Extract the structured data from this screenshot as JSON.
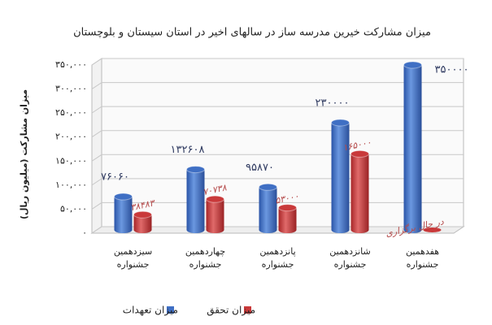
{
  "chart_data": {
    "type": "bar",
    "title": "میزان مشارکت خیرین مدرسه ساز در سالهای اخیر در استان سیستان و بلوچستان",
    "y_label": "میزان مشارکت (میلیون ریال)",
    "categories": [
      "سیزدهمین جشنواره",
      "چهاردهمین جشنواره",
      "پانزدهمین جشنواره",
      "شانزدهمین جشنواره",
      "هفدهمین جشنواره"
    ],
    "series": [
      {
        "name": "میزان تعهدات",
        "color": "#3f6fc4",
        "values": [
          76060,
          132608,
          95870,
          230000,
          350000
        ],
        "value_labels": [
          "۷۶۰۶۰",
          "۱۳۲۶۰۸",
          "۹۵۸۷۰",
          "۲۳۰۰۰۰",
          "۳۵۰۰۰۰"
        ]
      },
      {
        "name": "میزان تحقق",
        "color": "#c9393a",
        "values": [
          38483,
          70738,
          53000,
          165000,
          null
        ],
        "value_labels": [
          "۳۸۴۸۳",
          "۷۰۷۳۸",
          "۵۳۰۰۰",
          "۱۶۵۰۰۰",
          "در حال برگزاری"
        ]
      }
    ],
    "ylim": [
      0,
      350000
    ],
    "yticks": [
      {
        "value": 0,
        "label": "۰"
      },
      {
        "value": 50000,
        "label": "۵۰,۰۰۰"
      },
      {
        "value": 100000,
        "label": "۱۰۰,۰۰۰"
      },
      {
        "value": 150000,
        "label": "۱۵۰,۰۰۰"
      },
      {
        "value": 200000,
        "label": "۲۰۰,۰۰۰"
      },
      {
        "value": 250000,
        "label": "۲۵۰,۰۰۰"
      },
      {
        "value": 300000,
        "label": "۳۰۰,۰۰۰"
      },
      {
        "value": 350000,
        "label": "۳۵۰,۰۰۰"
      }
    ],
    "grid": true
  }
}
